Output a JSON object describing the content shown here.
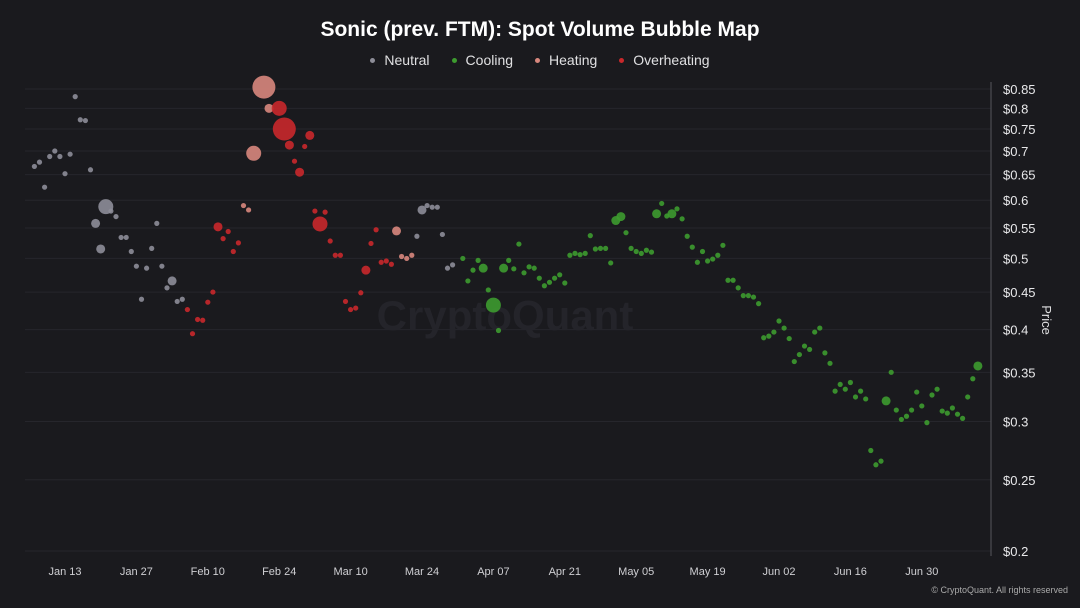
{
  "chart_data": {
    "type": "scatter",
    "title": "Sonic (prev. FTM): Spot Volume Bubble Map",
    "xlabel": "",
    "ylabel": "Price",
    "y_scale": "log",
    "ylim": [
      0.2,
      0.87
    ],
    "x_unit": "day of year 2025",
    "xlim": [
      3,
      194
    ],
    "grid": true,
    "legend_position": "top-center",
    "watermark": "CryptoQuant",
    "legend": [
      {
        "key": "neutral",
        "label": "Neutral",
        "color": "#8d8d98"
      },
      {
        "key": "cooling",
        "label": "Cooling",
        "color": "#3d9b2f"
      },
      {
        "key": "heating",
        "label": "Heating",
        "color": "#d8877d"
      },
      {
        "key": "overheating",
        "label": "Overheating",
        "color": "#c9282b"
      }
    ],
    "x_ticks": [
      {
        "day": 12,
        "label": "Jan 13"
      },
      {
        "day": 26,
        "label": "Jan 27"
      },
      {
        "day": 40,
        "label": "Feb 10"
      },
      {
        "day": 54,
        "label": "Feb 24"
      },
      {
        "day": 68,
        "label": "Mar 10"
      },
      {
        "day": 82,
        "label": "Mar 24"
      },
      {
        "day": 96,
        "label": "Apr 07"
      },
      {
        "day": 110,
        "label": "Apr 21"
      },
      {
        "day": 124,
        "label": "May 05"
      },
      {
        "day": 138,
        "label": "May 19"
      },
      {
        "day": 152,
        "label": "Jun 02"
      },
      {
        "day": 166,
        "label": "Jun 16"
      },
      {
        "day": 180,
        "label": "Jun 30"
      }
    ],
    "y_ticks": [
      {
        "value": 0.85,
        "label": "$0.85"
      },
      {
        "value": 0.8,
        "label": "$0.8"
      },
      {
        "value": 0.75,
        "label": "$0.75"
      },
      {
        "value": 0.7,
        "label": "$0.7"
      },
      {
        "value": 0.65,
        "label": "$0.65"
      },
      {
        "value": 0.6,
        "label": "$0.6"
      },
      {
        "value": 0.55,
        "label": "$0.55"
      },
      {
        "value": 0.5,
        "label": "$0.5"
      },
      {
        "value": 0.45,
        "label": "$0.45"
      },
      {
        "value": 0.4,
        "label": "$0.4"
      },
      {
        "value": 0.35,
        "label": "$0.35"
      },
      {
        "value": 0.3,
        "label": "$0.3"
      },
      {
        "value": 0.25,
        "label": "$0.25"
      },
      {
        "value": 0.2,
        "label": "$0.2"
      }
    ],
    "points_format": [
      "day",
      "price",
      "relative_volume_1to4",
      "status"
    ],
    "points": [
      [
        6,
        0.667,
        1,
        "neutral"
      ],
      [
        7,
        0.676,
        1,
        "neutral"
      ],
      [
        8,
        0.625,
        1,
        "neutral"
      ],
      [
        9,
        0.688,
        1,
        "neutral"
      ],
      [
        10,
        0.7,
        1,
        "neutral"
      ],
      [
        11,
        0.688,
        1,
        "neutral"
      ],
      [
        12,
        0.652,
        1,
        "neutral"
      ],
      [
        13,
        0.693,
        1,
        "neutral"
      ],
      [
        14,
        0.83,
        1,
        "neutral"
      ],
      [
        15,
        0.772,
        1,
        "neutral"
      ],
      [
        16,
        0.77,
        1,
        "neutral"
      ],
      [
        17,
        0.66,
        1,
        "neutral"
      ],
      [
        18,
        0.558,
        2,
        "neutral"
      ],
      [
        19,
        0.515,
        2,
        "neutral"
      ],
      [
        20,
        0.588,
        3,
        "neutral"
      ],
      [
        21,
        0.58,
        1,
        "neutral"
      ],
      [
        22,
        0.57,
        1,
        "neutral"
      ],
      [
        23,
        0.534,
        1,
        "neutral"
      ],
      [
        24,
        0.534,
        1,
        "neutral"
      ],
      [
        25,
        0.511,
        1,
        "neutral"
      ],
      [
        26,
        0.488,
        1,
        "neutral"
      ],
      [
        27,
        0.44,
        1,
        "neutral"
      ],
      [
        28,
        0.485,
        1,
        "neutral"
      ],
      [
        29,
        0.516,
        1,
        "neutral"
      ],
      [
        30,
        0.558,
        1,
        "neutral"
      ],
      [
        31,
        0.488,
        1,
        "neutral"
      ],
      [
        32,
        0.456,
        1,
        "neutral"
      ],
      [
        33,
        0.466,
        2,
        "neutral"
      ],
      [
        34,
        0.437,
        1,
        "neutral"
      ],
      [
        35,
        0.44,
        1,
        "neutral"
      ],
      [
        36,
        0.426,
        1,
        "overheating"
      ],
      [
        37,
        0.395,
        1,
        "overheating"
      ],
      [
        38,
        0.413,
        1,
        "overheating"
      ],
      [
        39,
        0.412,
        1,
        "overheating"
      ],
      [
        40,
        0.436,
        1,
        "overheating"
      ],
      [
        41,
        0.45,
        1,
        "overheating"
      ],
      [
        42,
        0.552,
        2,
        "overheating"
      ],
      [
        43,
        0.532,
        1,
        "overheating"
      ],
      [
        44,
        0.544,
        1,
        "overheating"
      ],
      [
        45,
        0.511,
        1,
        "overheating"
      ],
      [
        46,
        0.525,
        1,
        "overheating"
      ],
      [
        47,
        0.59,
        1,
        "heating"
      ],
      [
        48,
        0.582,
        1,
        "heating"
      ],
      [
        49,
        0.695,
        3,
        "heating"
      ],
      [
        51,
        0.855,
        4,
        "heating"
      ],
      [
        52,
        0.8,
        2,
        "heating"
      ],
      [
        54,
        0.8,
        3,
        "overheating"
      ],
      [
        55,
        0.75,
        4,
        "overheating"
      ],
      [
        56,
        0.713,
        2,
        "overheating"
      ],
      [
        57,
        0.678,
        1,
        "overheating"
      ],
      [
        58,
        0.655,
        2,
        "overheating"
      ],
      [
        59,
        0.71,
        1,
        "overheating"
      ],
      [
        60,
        0.735,
        2,
        "overheating"
      ],
      [
        61,
        0.58,
        1,
        "overheating"
      ],
      [
        62,
        0.557,
        3,
        "overheating"
      ],
      [
        63,
        0.578,
        1,
        "overheating"
      ],
      [
        64,
        0.528,
        1,
        "overheating"
      ],
      [
        65,
        0.505,
        1,
        "overheating"
      ],
      [
        66,
        0.505,
        1,
        "overheating"
      ],
      [
        67,
        0.437,
        1,
        "overheating"
      ],
      [
        68,
        0.426,
        1,
        "overheating"
      ],
      [
        69,
        0.428,
        1,
        "overheating"
      ],
      [
        70,
        0.449,
        1,
        "overheating"
      ],
      [
        71,
        0.482,
        2,
        "overheating"
      ],
      [
        72,
        0.524,
        1,
        "overheating"
      ],
      [
        73,
        0.547,
        1,
        "overheating"
      ],
      [
        74,
        0.494,
        1,
        "overheating"
      ],
      [
        75,
        0.496,
        1,
        "overheating"
      ],
      [
        76,
        0.491,
        1,
        "overheating"
      ],
      [
        77,
        0.545,
        2,
        "heating"
      ],
      [
        78,
        0.503,
        1,
        "heating"
      ],
      [
        79,
        0.5,
        1,
        "heating"
      ],
      [
        80,
        0.505,
        1,
        "heating"
      ],
      [
        81,
        0.536,
        1,
        "neutral"
      ],
      [
        82,
        0.582,
        2,
        "neutral"
      ],
      [
        83,
        0.59,
        1,
        "neutral"
      ],
      [
        84,
        0.587,
        1,
        "neutral"
      ],
      [
        85,
        0.587,
        1,
        "neutral"
      ],
      [
        86,
        0.539,
        1,
        "neutral"
      ],
      [
        87,
        0.485,
        1,
        "neutral"
      ],
      [
        88,
        0.49,
        1,
        "neutral"
      ],
      [
        90,
        0.5,
        1,
        "cooling"
      ],
      [
        91,
        0.466,
        1,
        "cooling"
      ],
      [
        92,
        0.482,
        1,
        "cooling"
      ],
      [
        93,
        0.497,
        1,
        "cooling"
      ],
      [
        94,
        0.485,
        2,
        "cooling"
      ],
      [
        95,
        0.453,
        1,
        "cooling"
      ],
      [
        96,
        0.432,
        3,
        "cooling"
      ],
      [
        97,
        0.399,
        1,
        "cooling"
      ],
      [
        98,
        0.485,
        2,
        "cooling"
      ],
      [
        99,
        0.497,
        1,
        "cooling"
      ],
      [
        100,
        0.484,
        1,
        "cooling"
      ],
      [
        101,
        0.523,
        1,
        "cooling"
      ],
      [
        102,
        0.478,
        1,
        "cooling"
      ],
      [
        103,
        0.487,
        1,
        "cooling"
      ],
      [
        104,
        0.485,
        1,
        "cooling"
      ],
      [
        105,
        0.47,
        1,
        "cooling"
      ],
      [
        106,
        0.459,
        1,
        "cooling"
      ],
      [
        107,
        0.464,
        1,
        "cooling"
      ],
      [
        108,
        0.47,
        1,
        "cooling"
      ],
      [
        109,
        0.475,
        1,
        "cooling"
      ],
      [
        110,
        0.463,
        1,
        "cooling"
      ],
      [
        111,
        0.505,
        1,
        "cooling"
      ],
      [
        112,
        0.508,
        1,
        "cooling"
      ],
      [
        113,
        0.506,
        1,
        "cooling"
      ],
      [
        114,
        0.508,
        1,
        "cooling"
      ],
      [
        115,
        0.537,
        1,
        "cooling"
      ],
      [
        116,
        0.515,
        1,
        "cooling"
      ],
      [
        117,
        0.516,
        1,
        "cooling"
      ],
      [
        118,
        0.516,
        1,
        "cooling"
      ],
      [
        119,
        0.493,
        1,
        "cooling"
      ],
      [
        120,
        0.563,
        2,
        "cooling"
      ],
      [
        121,
        0.57,
        2,
        "cooling"
      ],
      [
        122,
        0.542,
        1,
        "cooling"
      ],
      [
        123,
        0.516,
        1,
        "cooling"
      ],
      [
        124,
        0.511,
        1,
        "cooling"
      ],
      [
        125,
        0.508,
        1,
        "cooling"
      ],
      [
        126,
        0.513,
        1,
        "cooling"
      ],
      [
        127,
        0.51,
        1,
        "cooling"
      ],
      [
        128,
        0.575,
        2,
        "cooling"
      ],
      [
        129,
        0.594,
        1,
        "cooling"
      ],
      [
        130,
        0.571,
        1,
        "cooling"
      ],
      [
        131,
        0.575,
        2,
        "cooling"
      ],
      [
        132,
        0.584,
        1,
        "cooling"
      ],
      [
        133,
        0.566,
        1,
        "cooling"
      ],
      [
        134,
        0.536,
        1,
        "cooling"
      ],
      [
        135,
        0.518,
        1,
        "cooling"
      ],
      [
        136,
        0.494,
        1,
        "cooling"
      ],
      [
        137,
        0.511,
        1,
        "cooling"
      ],
      [
        138,
        0.496,
        1,
        "cooling"
      ],
      [
        139,
        0.499,
        1,
        "cooling"
      ],
      [
        140,
        0.505,
        1,
        "cooling"
      ],
      [
        141,
        0.521,
        1,
        "cooling"
      ],
      [
        142,
        0.467,
        1,
        "cooling"
      ],
      [
        143,
        0.467,
        1,
        "cooling"
      ],
      [
        144,
        0.456,
        1,
        "cooling"
      ],
      [
        145,
        0.445,
        1,
        "cooling"
      ],
      [
        146,
        0.445,
        1,
        "cooling"
      ],
      [
        147,
        0.443,
        1,
        "cooling"
      ],
      [
        148,
        0.434,
        1,
        "cooling"
      ],
      [
        149,
        0.39,
        1,
        "cooling"
      ],
      [
        150,
        0.392,
        1,
        "cooling"
      ],
      [
        151,
        0.397,
        1,
        "cooling"
      ],
      [
        152,
        0.411,
        1,
        "cooling"
      ],
      [
        153,
        0.402,
        1,
        "cooling"
      ],
      [
        154,
        0.389,
        1,
        "cooling"
      ],
      [
        155,
        0.362,
        1,
        "cooling"
      ],
      [
        156,
        0.37,
        1,
        "cooling"
      ],
      [
        157,
        0.38,
        1,
        "cooling"
      ],
      [
        158,
        0.376,
        1,
        "cooling"
      ],
      [
        159,
        0.397,
        1,
        "cooling"
      ],
      [
        160,
        0.402,
        1,
        "cooling"
      ],
      [
        161,
        0.372,
        1,
        "cooling"
      ],
      [
        162,
        0.36,
        1,
        "cooling"
      ],
      [
        163,
        0.33,
        1,
        "cooling"
      ],
      [
        164,
        0.337,
        1,
        "cooling"
      ],
      [
        165,
        0.332,
        1,
        "cooling"
      ],
      [
        166,
        0.339,
        1,
        "cooling"
      ],
      [
        167,
        0.324,
        1,
        "cooling"
      ],
      [
        168,
        0.33,
        1,
        "cooling"
      ],
      [
        169,
        0.322,
        1,
        "cooling"
      ],
      [
        170,
        0.274,
        1,
        "cooling"
      ],
      [
        171,
        0.262,
        1,
        "cooling"
      ],
      [
        172,
        0.265,
        1,
        "cooling"
      ],
      [
        173,
        0.32,
        2,
        "cooling"
      ],
      [
        174,
        0.35,
        1,
        "cooling"
      ],
      [
        175,
        0.311,
        1,
        "cooling"
      ],
      [
        176,
        0.302,
        1,
        "cooling"
      ],
      [
        177,
        0.305,
        1,
        "cooling"
      ],
      [
        178,
        0.311,
        1,
        "cooling"
      ],
      [
        179,
        0.329,
        1,
        "cooling"
      ],
      [
        180,
        0.315,
        1,
        "cooling"
      ],
      [
        181,
        0.299,
        1,
        "cooling"
      ],
      [
        182,
        0.326,
        1,
        "cooling"
      ],
      [
        183,
        0.332,
        1,
        "cooling"
      ],
      [
        184,
        0.31,
        1,
        "cooling"
      ],
      [
        185,
        0.308,
        1,
        "cooling"
      ],
      [
        186,
        0.313,
        1,
        "cooling"
      ],
      [
        187,
        0.307,
        1,
        "cooling"
      ],
      [
        188,
        0.303,
        1,
        "cooling"
      ],
      [
        189,
        0.324,
        1,
        "cooling"
      ],
      [
        190,
        0.343,
        1,
        "cooling"
      ],
      [
        191,
        0.357,
        2,
        "cooling"
      ]
    ]
  },
  "footer": "© CryptoQuant. All rights reserved"
}
